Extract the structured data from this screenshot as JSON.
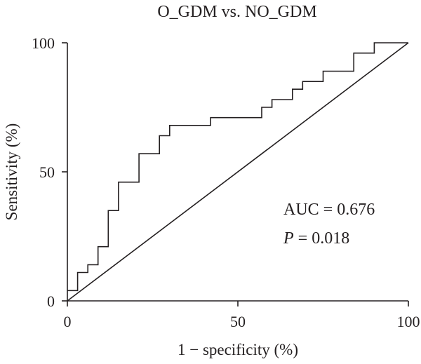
{
  "chart_data": {
    "type": "line",
    "title": "O_GDM vs. NO_GDM",
    "xlabel": "1 − specificity (%)",
    "ylabel": "Sensitivity (%)",
    "xlim": [
      0,
      100
    ],
    "ylim": [
      0,
      100
    ],
    "x_ticks": [
      "0",
      "50",
      "100"
    ],
    "y_ticks": [
      "0",
      "50",
      "100"
    ],
    "grid": false,
    "annotations": {
      "auc": "AUC = 0.676",
      "p_symbol": "P",
      "p_value": " = 0.018"
    },
    "series": [
      {
        "name": "",
        "x": [
          0,
          3,
          3,
          6,
          6,
          9,
          9,
          12,
          12,
          15,
          15,
          21,
          21,
          27,
          27,
          30,
          30,
          42,
          42,
          57,
          57,
          60,
          60,
          66,
          66,
          69,
          69,
          75,
          75,
          84,
          84,
          90,
          90,
          100
        ],
        "y": [
          4,
          4,
          11,
          11,
          14,
          14,
          21,
          21,
          35,
          35,
          46,
          46,
          57,
          57,
          64,
          64,
          68,
          68,
          71,
          71,
          75,
          75,
          78,
          78,
          82,
          82,
          85,
          85,
          89,
          89,
          96,
          96,
          100,
          100
        ]
      },
      {
        "name": "",
        "x": [
          0,
          100
        ],
        "y": [
          0,
          100
        ]
      }
    ]
  },
  "colors": {
    "line": "#231f20",
    "axis": "#231f20"
  }
}
